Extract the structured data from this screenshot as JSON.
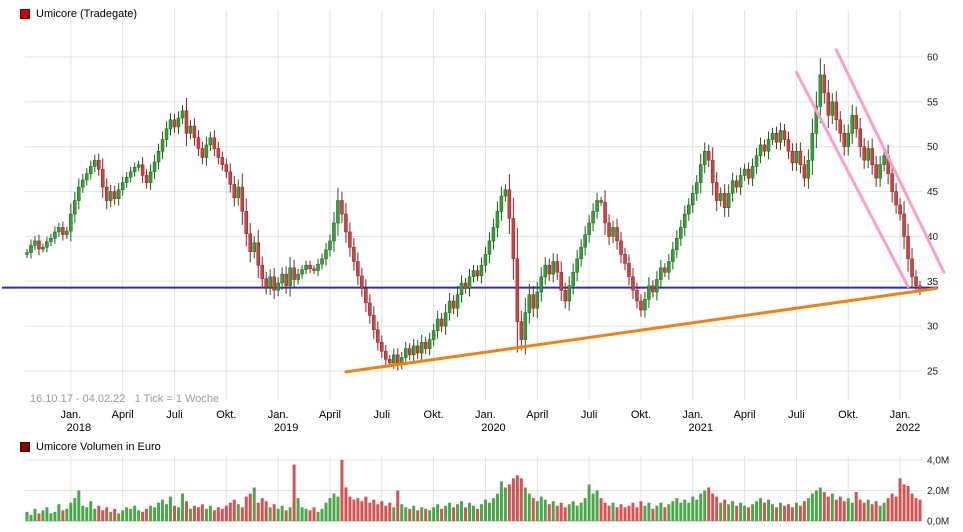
{
  "header": {
    "title": "Umicore (Tradegate)",
    "swatch_color": "#cc0000"
  },
  "volume_header": {
    "title": "Umicore Volumen in Euro",
    "swatch_color": "#8b0000"
  },
  "period_note": "16.10.17 - 04.02.22   1 Tick = 1 Woche",
  "chart_data": {
    "type": "candlestick",
    "name": "Umicore (Tradegate)",
    "date_range": "16.10.17 - 04.02.22",
    "tick_unit": "1 Tick = 1 Woche",
    "ylim": [
      24,
      61
    ],
    "y_ticks": [
      60,
      55,
      50,
      45,
      40,
      35,
      30,
      25
    ],
    "y_tick_labels": [
      "60",
      "55",
      "50",
      "45",
      "40",
      "35",
      "30",
      "25"
    ],
    "x_labels": [
      {
        "week": 11,
        "month": "Jan.",
        "year": "2018"
      },
      {
        "week": 24,
        "month": "April"
      },
      {
        "week": 37,
        "month": "Juli"
      },
      {
        "week": 50,
        "month": "Okt."
      },
      {
        "week": 63,
        "month": "Jan.",
        "year": "2019"
      },
      {
        "week": 76,
        "month": "April"
      },
      {
        "week": 89,
        "month": "Juli"
      },
      {
        "week": 102,
        "month": "Okt."
      },
      {
        "week": 115,
        "month": "Jan.",
        "year": "2020"
      },
      {
        "week": 128,
        "month": "April"
      },
      {
        "week": 141,
        "month": "Juli"
      },
      {
        "week": 154,
        "month": "Okt."
      },
      {
        "week": 167,
        "month": "Jan.",
        "year": "2021"
      },
      {
        "week": 180,
        "month": "April"
      },
      {
        "week": 193,
        "month": "Juli"
      },
      {
        "week": 206,
        "month": "Okt."
      },
      {
        "week": 219,
        "month": "Jan.",
        "year": "2022"
      }
    ],
    "first_open": 38.0,
    "closes": [
      38.2,
      39.0,
      39.5,
      38.6,
      38.8,
      39.4,
      39.8,
      40.5,
      41.0,
      40.2,
      40.6,
      42.5,
      44.0,
      45.5,
      46.3,
      47.0,
      47.8,
      48.5,
      47.5,
      45.5,
      44.0,
      45.0,
      44.2,
      45.2,
      46.0,
      46.6,
      47.2,
      47.7,
      48.0,
      46.8,
      46.0,
      47.2,
      48.3,
      49.5,
      50.8,
      52.0,
      53.0,
      52.2,
      53.2,
      54.0,
      51.5,
      52.3,
      51.0,
      49.8,
      48.8,
      50.2,
      51.0,
      49.8,
      48.8,
      48.0,
      47.2,
      45.8,
      44.3,
      45.5,
      42.8,
      40.3,
      38.3,
      39.3,
      36.8,
      35.3,
      34.3,
      35.5,
      34.0,
      34.8,
      35.8,
      34.5,
      36.5,
      35.2,
      35.8,
      36.3,
      36.8,
      36.4,
      36.2,
      36.9,
      37.5,
      38.5,
      39.5,
      41.5,
      44.0,
      42.5,
      40.5,
      38.8,
      37.2,
      35.6,
      34.2,
      32.6,
      31.2,
      29.6,
      28.2,
      27.2,
      26.3,
      25.9,
      26.8,
      25.8,
      26.5,
      27.5,
      26.8,
      27.8,
      27.0,
      28.2,
      27.5,
      28.5,
      29.5,
      30.8,
      30.0,
      31.5,
      32.8,
      32.0,
      33.5,
      34.8,
      34.2,
      35.5,
      36.2,
      35.6,
      36.8,
      38.0,
      39.5,
      41.0,
      42.8,
      44.5,
      45.2,
      42.0,
      37.5,
      30.5,
      28.5,
      31.5,
      33.5,
      32.0,
      33.8,
      35.5,
      36.8,
      35.8,
      37.2,
      36.0,
      34.0,
      32.8,
      34.5,
      36.0,
      37.5,
      38.8,
      40.2,
      41.5,
      42.8,
      44.0,
      43.8,
      41.5,
      40.0,
      41.0,
      39.5,
      38.0,
      37.0,
      35.5,
      34.0,
      32.8,
      31.8,
      33.0,
      34.5,
      33.8,
      35.2,
      36.5,
      36.0,
      37.2,
      38.5,
      39.8,
      41.0,
      42.5,
      43.5,
      44.8,
      46.0,
      48.0,
      49.5,
      48.5,
      46.0,
      44.0,
      44.8,
      43.2,
      44.8,
      46.2,
      45.5,
      46.8,
      47.5,
      46.5,
      47.8,
      49.0,
      50.2,
      49.5,
      50.8,
      51.5,
      50.5,
      51.8,
      50.8,
      49.5,
      48.2,
      49.5,
      48.0,
      46.5,
      48.5,
      51.5,
      54.5,
      58.0,
      56.0,
      53.5,
      55.0,
      53.0,
      51.5,
      50.0,
      51.5,
      53.5,
      52.0,
      50.0,
      48.5,
      49.8,
      48.0,
      46.5,
      48.0,
      49.0,
      47.0,
      45.0,
      43.5,
      42.5,
      40.0,
      37.5,
      35.5,
      34.5,
      34.0
    ],
    "volumes_mio": [
      0.6,
      0.4,
      0.8,
      0.5,
      0.7,
      0.9,
      0.5,
      0.6,
      1.1,
      0.7,
      0.8,
      1.2,
      1.5,
      2.0,
      1.0,
      0.9,
      1.3,
      0.8,
      1.0,
      0.7,
      0.9,
      0.6,
      0.8,
      0.5,
      0.7,
      0.9,
      0.8,
      1.0,
      0.7,
      0.6,
      0.8,
      1.0,
      0.9,
      1.2,
      1.4,
      1.1,
      1.6,
      1.0,
      0.9,
      1.8,
      1.3,
      0.8,
      1.0,
      0.9,
      1.1,
      0.8,
      1.0,
      0.7,
      0.9,
      0.8,
      1.0,
      1.2,
      1.4,
      1.1,
      0.9,
      1.6,
      1.8,
      2.2,
      1.2,
      1.5,
      1.3,
      0.9,
      1.1,
      0.8,
      1.0,
      0.7,
      0.9,
      3.7,
      1.5,
      0.9,
      0.8,
      0.7,
      0.9,
      0.6,
      0.8,
      1.2,
      1.5,
      1.8,
      1.6,
      4.0,
      2.2,
      1.6,
      1.4,
      1.5,
      1.3,
      1.6,
      1.2,
      1.4,
      1.1,
      1.3,
      1.0,
      1.2,
      0.9,
      2.0,
      1.1,
      0.9,
      0.8,
      1.0,
      0.7,
      0.9,
      0.8,
      0.7,
      0.9,
      1.1,
      0.8,
      1.0,
      1.2,
      0.9,
      1.1,
      1.3,
      0.9,
      1.2,
      1.0,
      0.8,
      1.1,
      1.4,
      1.2,
      1.5,
      1.8,
      2.6,
      2.2,
      2.4,
      2.8,
      3.0,
      2.8,
      2.2,
      1.8,
      1.5,
      1.3,
      1.6,
      1.4,
      1.1,
      1.3,
      1.0,
      1.2,
      0.9,
      1.1,
      1.3,
      1.0,
      1.2,
      1.5,
      2.4,
      1.8,
      2.0,
      1.5,
      1.2,
      1.0,
      1.2,
      0.9,
      1.1,
      0.9,
      1.0,
      1.2,
      0.9,
      1.3,
      1.0,
      1.2,
      0.8,
      1.0,
      1.2,
      0.9,
      1.1,
      1.3,
      1.5,
      1.2,
      1.4,
      1.2,
      1.6,
      1.4,
      1.8,
      2.0,
      2.2,
      1.8,
      1.6,
      1.2,
      1.4,
      1.1,
      1.3,
      1.0,
      1.2,
      1.0,
      0.9,
      1.1,
      1.3,
      1.5,
      1.2,
      1.4,
      1.1,
      0.9,
      1.2,
      1.0,
      1.1,
      0.9,
      1.2,
      1.0,
      1.3,
      1.5,
      1.8,
      2.0,
      2.2,
      1.9,
      1.6,
      1.8,
      1.4,
      1.6,
      1.3,
      1.5,
      1.2,
      1.9,
      1.4,
      1.2,
      1.4,
      1.1,
      1.3,
      1.0,
      1.2,
      1.5,
      1.8,
      1.6,
      2.8,
      2.4,
      2.3,
      1.8,
      1.5,
      1.4
    ],
    "volume_ticks": [
      {
        "value": 4,
        "label": "4,0M"
      },
      {
        "value": 2,
        "label": "2,0M"
      },
      {
        "value": 0,
        "label": "0,0M"
      }
    ],
    "support_line": {
      "value": 34.3,
      "color": "#2b2bb5"
    },
    "trendlines": [
      {
        "name": "ascending-support",
        "color": "#f28210",
        "width": 3,
        "from": {
          "week": 80,
          "value": 24.9
        },
        "to": {
          "week": 228,
          "value": 34.2
        }
      },
      {
        "name": "down-channel-left",
        "color": "#ff9ecb",
        "width": 3,
        "from": {
          "week": 193,
          "value": 58.3
        },
        "to": {
          "week": 221,
          "value": 34.4
        }
      },
      {
        "name": "down-channel-right",
        "color": "#ff9ecb",
        "width": 3,
        "from": {
          "week": 203,
          "value": 60.8
        },
        "to": {
          "week": 230,
          "value": 36.0
        }
      }
    ],
    "wick_base": 0.3,
    "wick_factor": 0.45,
    "colors": {
      "up": {
        "fill": "#35a035",
        "stroke": "#156415"
      },
      "down": {
        "fill": "#d24040",
        "stroke": "#8e1f1f"
      },
      "grid": "#e2e2e2",
      "volume_zero_line": "#bbbbbb",
      "axis_text": "#222222"
    }
  }
}
